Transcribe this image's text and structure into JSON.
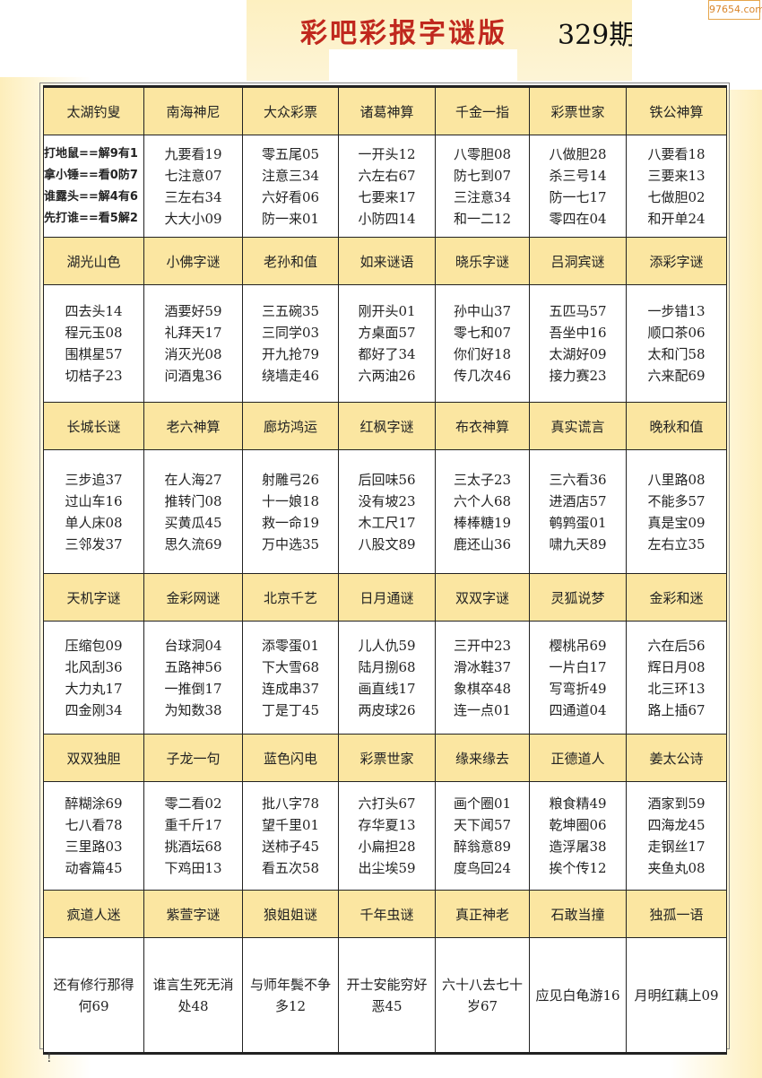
{
  "header": {
    "title": "彩吧彩报字谜版",
    "issue": "329期",
    "watermark": "97654.com"
  },
  "sections": [
    {
      "headers": [
        "太湖钓叟",
        "南海神尼",
        "大众彩票",
        "诸葛神算",
        "千金一指",
        "彩票世家",
        "铁公神算"
      ],
      "cells": [
        [
          "打地鼠==解9有1",
          "拿小锤==看0防7",
          "谁露头==解4有6",
          "先打谁==看5解2"
        ],
        [
          "九要看19",
          "七注意07",
          "三左右34",
          "大大小09"
        ],
        [
          "零五尾05",
          "注意三34",
          "六好看06",
          "防一来01"
        ],
        [
          "一开头12",
          "六左右67",
          "七要来17",
          "小防四14"
        ],
        [
          "八零胆08",
          "防七到07",
          "三注意34",
          "和一二12"
        ],
        [
          "八做胆28",
          "杀三号14",
          "防一七17",
          "零四在04"
        ],
        [
          "八要看18",
          "三要来13",
          "七做胆02",
          "和开单24"
        ]
      ]
    },
    {
      "headers": [
        "湖光山色",
        "小佛字谜",
        "老孙和值",
        "如来谜语",
        "晓乐字谜",
        "吕洞宾谜",
        "添彩字谜"
      ],
      "cells": [
        [
          "四去头14",
          "程元玉08",
          "围棋星57",
          "切桔子23"
        ],
        [
          "酒要好59",
          "礼拜天17",
          "消灭光08",
          "问酒鬼36"
        ],
        [
          "三五碗35",
          "三同学03",
          "开九抢79",
          "绕墙走46"
        ],
        [
          "刚开头01",
          "方桌面57",
          "都好了34",
          "六两油26"
        ],
        [
          "孙中山37",
          "零七和07",
          "你们好18",
          "传几次46"
        ],
        [
          "五匹马57",
          "吾坐中16",
          "太湖好09",
          "接力赛23"
        ],
        [
          "一步错13",
          "顺口茶06",
          "太和门58",
          "六来配69"
        ]
      ]
    },
    {
      "headers": [
        "长城长谜",
        "老六神算",
        "廊坊鸿运",
        "红枫字谜",
        "布衣神算",
        "真实谎言",
        "晚秋和值"
      ],
      "cells": [
        [
          "三步追37",
          "过山车16",
          "单人床08",
          "三邻发37"
        ],
        [
          "在人海27",
          "推转门08",
          "买黄瓜45",
          "思久流69"
        ],
        [
          "射雕弓26",
          "十一娘18",
          "救一命19",
          "万中选35"
        ],
        [
          "后回味56",
          "没有坡23",
          "木工尺17",
          "八股文89"
        ],
        [
          "三太子23",
          "六个人68",
          "棒棒糖19",
          "鹿还山36"
        ],
        [
          "三六看36",
          "进酒店57",
          "鹌鹑蛋01",
          "啸九天89"
        ],
        [
          "八里路08",
          "不能多57",
          "真是宝09",
          "左右立35"
        ]
      ]
    },
    {
      "headers": [
        "天机字谜",
        "金彩网谜",
        "北京千艺",
        "日月通谜",
        "双双字谜",
        "灵狐说梦",
        "金彩和迷"
      ],
      "cells": [
        [
          "压缩包09",
          "北风刮36",
          "大力丸17",
          "四金刚34"
        ],
        [
          "台球洞04",
          "五路神56",
          "一推倒17",
          "为知数38"
        ],
        [
          "添零蛋01",
          "下大雪68",
          "连成串37",
          "丁是丁45"
        ],
        [
          "儿人仇59",
          "陆月捌68",
          "画直线17",
          "两皮球26"
        ],
        [
          "三开中23",
          "滑冰鞋37",
          "象棋卒48",
          "连一点01"
        ],
        [
          "樱桃吊69",
          "一片白17",
          "写弯折49",
          "四通道04"
        ],
        [
          "六在后56",
          "辉日月08",
          "北三环13",
          "路上插67"
        ]
      ]
    },
    {
      "headers": [
        "双双独胆",
        "子龙一句",
        "蓝色闪电",
        "彩票世家",
        "缘来缘去",
        "正德道人",
        "姜太公诗"
      ],
      "cells": [
        [
          "醉糊涂69",
          "七八看78",
          "三里路03",
          "动睿篇45"
        ],
        [
          "零二看02",
          "重千斤17",
          "挑酒坛68",
          "下鸡田13"
        ],
        [
          "批八字78",
          "望千里01",
          "送柿子45",
          "看五次58"
        ],
        [
          "六打头67",
          "存华夏13",
          "小扁担28",
          "出尘埃59"
        ],
        [
          "画个圈01",
          "天下闻57",
          "醉翁意89",
          "度鸟回24"
        ],
        [
          "粮食精49",
          "乾坤圈06",
          "造浮屠38",
          "挨个传12"
        ],
        [
          "酒家到59",
          "四海龙45",
          "走钢丝17",
          "夹鱼丸08"
        ]
      ]
    },
    {
      "headers": [
        "疯道人迷",
        "紫萱字谜",
        "狼姐姐谜",
        "千年虫谜",
        "真正神老",
        "石敢当撞",
        "独孤一语"
      ],
      "cells": [
        [
          "还有修行那得",
          "何69"
        ],
        [
          "谁言生死无消",
          "处48"
        ],
        [
          "与师年鬓不争",
          "多12"
        ],
        [
          "开士安能穷好",
          "恶45"
        ],
        [
          "六十八去七十",
          "岁67"
        ],
        [
          "应见白龟游16"
        ],
        [
          "月明红藕上09"
        ]
      ]
    }
  ],
  "footer": {
    "mark": "!"
  }
}
